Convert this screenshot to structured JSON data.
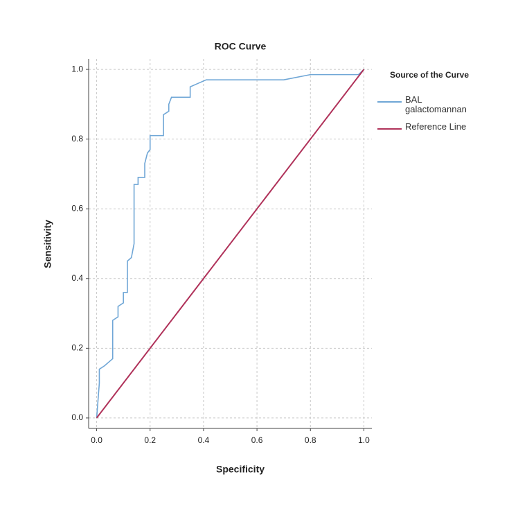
{
  "chart_data": {
    "type": "line",
    "title": "ROC Curve",
    "x_label": "Specificity",
    "y_label": "Sensitivity",
    "legend_title": "Source of the Curve",
    "legend": "right",
    "grid": true,
    "xlim": [
      -0.03,
      1.03
    ],
    "ylim": [
      -0.03,
      1.03
    ],
    "xticks": [
      {
        "value": 0,
        "label": "0.0"
      },
      0.2,
      0.4,
      0.6,
      0.8,
      {
        "value": 1,
        "label": "1.0"
      }
    ],
    "yticks": [
      {
        "value": 0,
        "label": "0.0"
      },
      0.2,
      0.4,
      0.6,
      0.8,
      {
        "value": 1,
        "label": "1.0"
      }
    ],
    "series": [
      {
        "name": "BAL galactomannan",
        "color": "#6fa6d6",
        "x": [
          0,
          0.005,
          0.01,
          0.01,
          0.03,
          0.06,
          0.06,
          0.08,
          0.08,
          0.1,
          0.1,
          0.115,
          0.115,
          0.13,
          0.14,
          0.14,
          0.155,
          0.155,
          0.18,
          0.18,
          0.19,
          0.2,
          0.2,
          0.25,
          0.25,
          0.27,
          0.27,
          0.28,
          0.35,
          0.35,
          0.38,
          0.41,
          0.7,
          0.8,
          0.98,
          1
        ],
        "values": [
          0,
          0.05,
          0.1,
          0.14,
          0.15,
          0.17,
          0.28,
          0.29,
          0.32,
          0.33,
          0.36,
          0.36,
          0.45,
          0.46,
          0.5,
          0.67,
          0.67,
          0.69,
          0.69,
          0.73,
          0.76,
          0.77,
          0.81,
          0.81,
          0.87,
          0.88,
          0.9,
          0.92,
          0.92,
          0.95,
          0.96,
          0.97,
          0.97,
          0.985,
          0.985,
          1
        ]
      },
      {
        "name": "Reference Line",
        "color": "#b0325a",
        "x": [
          0,
          1
        ],
        "values": [
          0,
          1
        ]
      }
    ]
  }
}
